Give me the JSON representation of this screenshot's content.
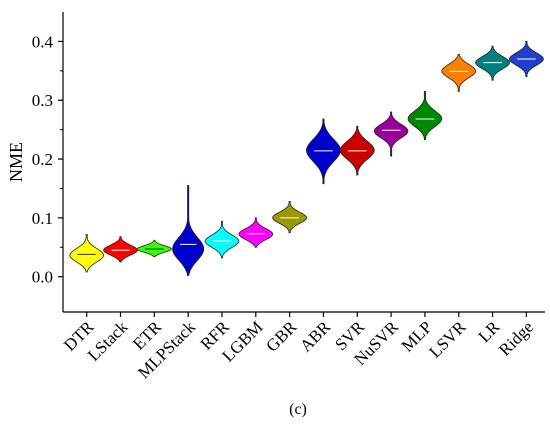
{
  "chart_data": {
    "type": "violin",
    "ylabel": "NME",
    "caption": "(c)",
    "ylim": [
      -0.06,
      0.45
    ],
    "yticks": [
      0.0,
      0.1,
      0.2,
      0.3,
      0.4
    ],
    "ytick_labels": [
      "0.0",
      "0.1",
      "0.2",
      "0.3",
      "0.4"
    ],
    "grid": false,
    "categories": [
      "DTR",
      "LStack",
      "ETR",
      "MLPStack",
      "RFR",
      "LGBM",
      "GBR",
      "ABR",
      "SVR",
      "NuSVR",
      "MLP",
      "LSVR",
      "LR",
      "Ridge"
    ],
    "series": [
      {
        "category": "DTR",
        "color": "#ffff00",
        "median": 0.038,
        "min": 0.008,
        "max": 0.072,
        "peak": 0.036,
        "spread": 0.012
      },
      {
        "category": "LStack",
        "color": "#ff0000",
        "median": 0.045,
        "min": 0.025,
        "max": 0.068,
        "peak": 0.045,
        "spread": 0.009
      },
      {
        "category": "ETR",
        "color": "#33ff00",
        "median": 0.047,
        "min": 0.034,
        "max": 0.062,
        "peak": 0.047,
        "spread": 0.006
      },
      {
        "category": "MLPStack",
        "color": "#0000cc",
        "median": 0.055,
        "min": 0.002,
        "max": 0.155,
        "peak": 0.045,
        "spread": 0.02
      },
      {
        "category": "RFR",
        "color": "#00ffff",
        "median": 0.061,
        "min": 0.032,
        "max": 0.094,
        "peak": 0.06,
        "spread": 0.011
      },
      {
        "category": "LGBM",
        "color": "#ff00ff",
        "median": 0.073,
        "min": 0.05,
        "max": 0.1,
        "peak": 0.072,
        "spread": 0.01
      },
      {
        "category": "GBR",
        "color": "#999900",
        "median": 0.1,
        "min": 0.075,
        "max": 0.128,
        "peak": 0.1,
        "spread": 0.01
      },
      {
        "category": "ABR",
        "color": "#0000cc",
        "median": 0.214,
        "min": 0.158,
        "max": 0.268,
        "peak": 0.215,
        "spread": 0.02
      },
      {
        "category": "SVR",
        "color": "#cc0000",
        "median": 0.214,
        "min": 0.173,
        "max": 0.256,
        "peak": 0.215,
        "spread": 0.016
      },
      {
        "category": "NuSVR",
        "color": "#990099",
        "median": 0.249,
        "min": 0.205,
        "max": 0.28,
        "peak": 0.248,
        "spread": 0.012
      },
      {
        "category": "MLP",
        "color": "#008800",
        "median": 0.268,
        "min": 0.233,
        "max": 0.315,
        "peak": 0.268,
        "spread": 0.014
      },
      {
        "category": "LSVR",
        "color": "#ff8000",
        "median": 0.349,
        "min": 0.315,
        "max": 0.378,
        "peak": 0.35,
        "spread": 0.012
      },
      {
        "category": "LR",
        "color": "#008080",
        "median": 0.364,
        "min": 0.334,
        "max": 0.392,
        "peak": 0.364,
        "spread": 0.011
      },
      {
        "category": "Ridge",
        "color": "#1f3fd0",
        "median": 0.37,
        "min": 0.34,
        "max": 0.4,
        "peak": 0.37,
        "spread": 0.011
      }
    ]
  }
}
